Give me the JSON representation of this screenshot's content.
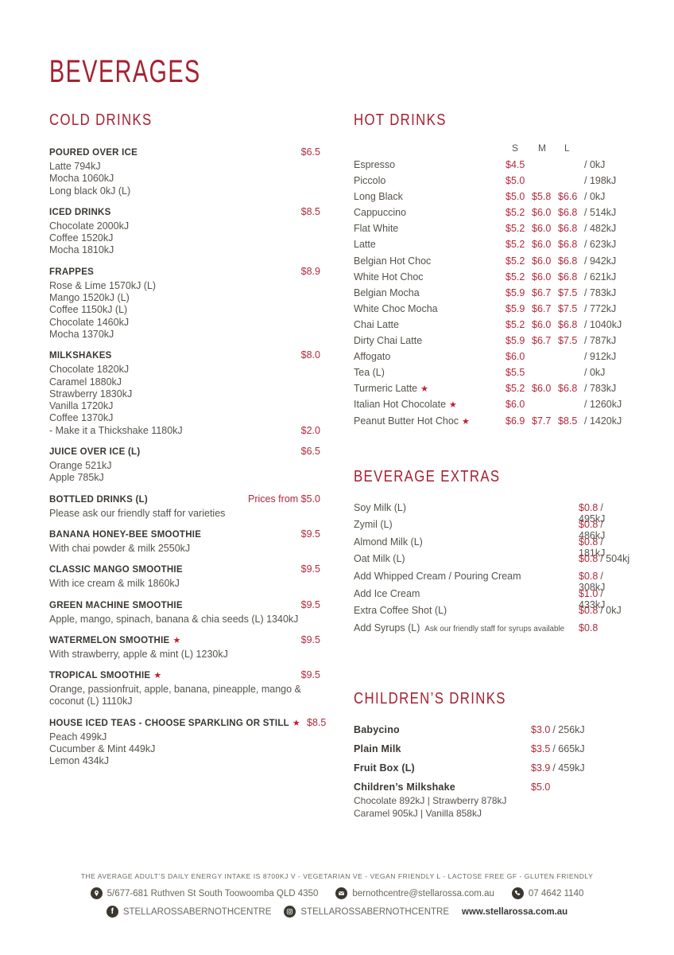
{
  "page_title": "BEVERAGES",
  "colors": {
    "heading_red": "#a72031",
    "price_red": "#b12a3a",
    "star_red": "#c01f2f",
    "title_dark": "#3a3733",
    "body_gray": "#56524c",
    "footer_gray": "#6b675f",
    "icon_dark": "#3b372f"
  },
  "cold_drinks": {
    "heading": "COLD DRINKS",
    "items": [
      {
        "name": "POURED OVER ICE",
        "price": "$6.5",
        "lines": [
          "Latte 794kJ",
          "Mocha 1060kJ",
          "Long black 0kJ (L)"
        ]
      },
      {
        "name": "ICED DRINKS",
        "price": "$8.5",
        "lines": [
          "Chocolate 2000kJ",
          "Coffee 1520kJ",
          "Mocha 1810kJ"
        ]
      },
      {
        "name": "FRAPPES",
        "price": "$8.9",
        "lines": [
          "Rose & Lime 1570kJ (L)",
          "Mango 1520kJ (L)",
          "Coffee 1150kJ (L)",
          "Chocolate 1460kJ",
          "Mocha 1370kJ"
        ]
      },
      {
        "name": "MILKSHAKES",
        "price": "$8.0",
        "lines": [
          "Chocolate 1820kJ",
          "Caramel 1880kJ",
          "Strawberry 1830kJ",
          "Vanilla 1720kJ",
          "Coffee 1370kJ"
        ],
        "addon": {
          "text": "- Make it a Thickshake 1180kJ",
          "price": "$2.0"
        }
      },
      {
        "name": "JUICE OVER ICE (L)",
        "price": "$6.5",
        "lines": [
          "Orange 521kJ",
          "Apple 785kJ"
        ]
      },
      {
        "name": "BOTTLED DRINKS (L)",
        "price": "Prices from $5.0",
        "lines": [
          "Please ask our friendly staff for varieties"
        ]
      },
      {
        "name": "BANANA HONEY-BEE SMOOTHIE",
        "price": "$9.5",
        "lines": [
          "With chai powder & milk 2550kJ"
        ]
      },
      {
        "name": "CLASSIC MANGO SMOOTHIE",
        "price": "$9.5",
        "lines": [
          "With ice cream & milk 1860kJ"
        ]
      },
      {
        "name": "GREEN MACHINE SMOOTHIE",
        "price": "$9.5",
        "lines": [
          "Apple, mango, spinach, banana & chia seeds (L) 1340kJ"
        ]
      },
      {
        "name": "WATERMELON SMOOTHIE",
        "star": true,
        "price": "$9.5",
        "lines": [
          "With strawberry, apple & mint (L) 1230kJ"
        ]
      },
      {
        "name": "TROPICAL SMOOTHIE",
        "star": true,
        "price": "$9.5",
        "lines": [
          "Orange, passionfruit, apple, banana, pineapple, mango & coconut (L) 1110kJ"
        ]
      },
      {
        "name": "HOUSE ICED TEAS - CHOOSE SPARKLING OR STILL",
        "star": true,
        "price": "$8.5",
        "lines": [
          "Peach 499kJ",
          "Cucumber & Mint 449kJ",
          "Lemon 434kJ"
        ]
      }
    ]
  },
  "hot_drinks": {
    "heading": "HOT DRINKS",
    "size_headers": [
      "S",
      "M",
      "L"
    ],
    "rows": [
      {
        "name": "Espresso",
        "s": "$4.5",
        "m": "",
        "l": "",
        "kj": "/ 0kJ"
      },
      {
        "name": "Piccolo",
        "s": "$5.0",
        "m": "",
        "l": "",
        "kj": "/ 198kJ"
      },
      {
        "name": "Long Black",
        "s": "$5.0",
        "m": "$5.8",
        "l": "$6.6",
        "kj": "/ 0kJ"
      },
      {
        "name": "Cappuccino",
        "s": "$5.2",
        "m": "$6.0",
        "l": "$6.8",
        "kj": "/ 514kJ"
      },
      {
        "name": "Flat White",
        "s": "$5.2",
        "m": "$6.0",
        "l": "$6.8",
        "kj": "/ 482kJ"
      },
      {
        "name": "Latte",
        "s": "$5.2",
        "m": "$6.0",
        "l": "$6.8",
        "kj": "/ 623kJ"
      },
      {
        "name": "Belgian Hot Choc",
        "s": "$5.2",
        "m": "$6.0",
        "l": "$6.8",
        "kj": "/ 942kJ"
      },
      {
        "name": "White Hot Choc",
        "s": "$5.2",
        "m": "$6.0",
        "l": "$6.8",
        "kj": "/ 621kJ"
      },
      {
        "name": "Belgian Mocha",
        "s": "$5.9",
        "m": "$6.7",
        "l": "$7.5",
        "kj": "/ 783kJ"
      },
      {
        "name": "White Choc Mocha",
        "s": "$5.9",
        "m": "$6.7",
        "l": "$7.5",
        "kj": "/ 772kJ"
      },
      {
        "name": "Chai Latte",
        "s": "$5.2",
        "m": "$6.0",
        "l": "$6.8",
        "kj": "/ 1040kJ"
      },
      {
        "name": "Dirty Chai Latte",
        "s": "$5.9",
        "m": "$6.7",
        "l": "$7.5",
        "kj": "/ 787kJ"
      },
      {
        "name": "Affogato",
        "s": "$6.0",
        "m": "",
        "l": "",
        "kj": "/ 912kJ"
      },
      {
        "name": "Tea (L)",
        "s": "$5.5",
        "m": "",
        "l": "",
        "kj": "/ 0kJ"
      },
      {
        "name": "Turmeric Latte",
        "star": true,
        "s": "$5.2",
        "m": "$6.0",
        "l": "$6.8",
        "kj": "/ 783kJ"
      },
      {
        "name": "Italian Hot Chocolate",
        "star": true,
        "s": "$6.0",
        "m": "",
        "l": "",
        "kj": "/ 1260kJ"
      },
      {
        "name": "Peanut Butter Hot Choc",
        "star": true,
        "s": "$6.9",
        "m": "$7.7",
        "l": "$8.5",
        "kj": "/ 1420kJ"
      }
    ]
  },
  "beverage_extras": {
    "heading": "BEVERAGE EXTRAS",
    "rows": [
      {
        "name": "Soy Milk (L)",
        "price": "$0.8",
        "kj": "/ 495kJ"
      },
      {
        "name": "Zymil (L)",
        "price": "$0.8",
        "kj": "/ 486kJ"
      },
      {
        "name": "Almond Milk (L)",
        "price": "$0.8",
        "kj": "/ 181kJ"
      },
      {
        "name": "Oat Milk (L)",
        "price": "$0.8",
        "kj": "/ 504kj"
      },
      {
        "name": "Add Whipped Cream / Pouring Cream",
        "price": "$0.8",
        "kj": "/ 308kJ"
      },
      {
        "name": "Add Ice Cream",
        "price": "$1.0",
        "kj": "/ 433kJ"
      },
      {
        "name": "Extra Coffee Shot (L)",
        "price": "$0.8",
        "kj": "/ 0kJ"
      },
      {
        "name": "Add Syrups (L)",
        "note": "Ask our friendly staff for syrups available",
        "price": "$0.8",
        "kj": ""
      }
    ]
  },
  "childrens_drinks": {
    "heading": "CHILDREN’S DRINKS",
    "rows": [
      {
        "name": "Babycino",
        "price": "$3.0",
        "kj": "/ 256kJ"
      },
      {
        "name": "Plain Milk",
        "price": "$3.5",
        "kj": "/ 665kJ"
      },
      {
        "name": "Fruit Box (L)",
        "price": "$3.9",
        "kj": "/ 459kJ"
      },
      {
        "name": "Children’s Milkshake",
        "price": "$5.0",
        "kj": "",
        "sub": [
          "Chocolate 892kJ  |  Strawberry 878kJ",
          "Caramel 905kJ  |  Vanilla 858kJ"
        ]
      }
    ]
  },
  "footer": {
    "energy_line": "THE AVERAGE ADULT’S DAILY ENERGY INTAKE IS 8700KJ V - VEGETARIAN VE - VEGAN FRIENDLY L - LACTOSE FREE GF - GLUTEN FRIENDLY",
    "address": "5/677-681 Ruthven St  South Toowoomba QLD 4350",
    "email": "bernothcentre@stellarossa.com.au",
    "phone": "07 4642 1140",
    "facebook": "STELLAROSSABERNOTHCENTRE",
    "instagram": "STELLAROSSABERNOTHCENTRE",
    "website": "www.stellarossa.com.au",
    "facebook_icon_letter": "f"
  }
}
